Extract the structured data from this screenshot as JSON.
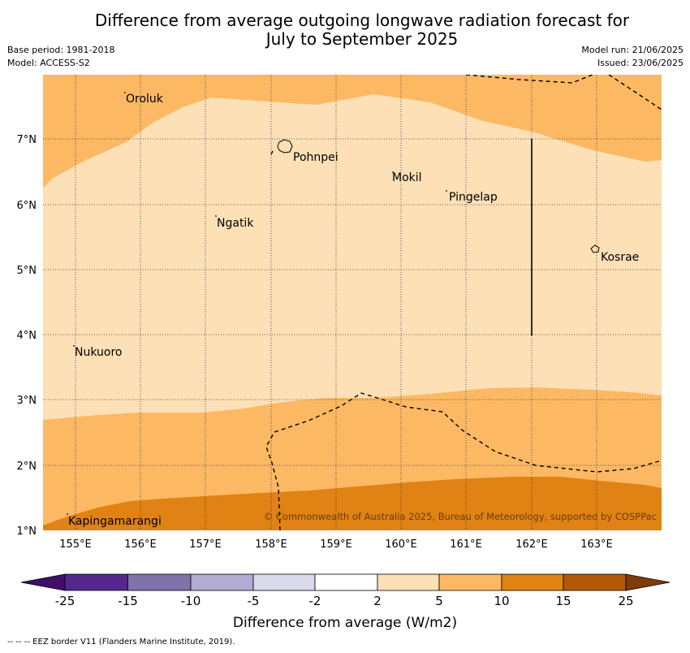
{
  "title_line1": "Difference from average outgoing longwave radiation forecast for",
  "title_line2": "July to September 2025",
  "base_period": "Base period: 1981-2018",
  "model": "Model: ACCESS-S2",
  "model_run": "Model run: 21/06/2025",
  "issued": "Issued: 23/06/2025",
  "copyright": "© Commonwealth of Australia 2025, Bureau of Meteorology, supported by COSPPac",
  "x_ticks": [
    "155°E",
    "156°E",
    "157°E",
    "158°E",
    "159°E",
    "160°E",
    "161°E",
    "162°E",
    "163°E"
  ],
  "y_ticks": [
    "7°N",
    "6°N",
    "5°N",
    "4°N",
    "3°N",
    "2°N",
    "1°N"
  ],
  "places": [
    {
      "name": "Oroluk"
    },
    {
      "name": "Pohnpei"
    },
    {
      "name": "Mokil"
    },
    {
      "name": "Pingelap"
    },
    {
      "name": "Ngatik"
    },
    {
      "name": "Kosrae"
    },
    {
      "name": "Nukuoro"
    },
    {
      "name": "Kapingamarangi"
    }
  ],
  "colorbar": {
    "ticks": [
      "-25",
      "-15",
      "-10",
      "-5",
      "-2",
      "2",
      "5",
      "10",
      "15",
      "25"
    ],
    "colors": [
      "#3f0f6b",
      "#54278f",
      "#8073ac",
      "#b2abd2",
      "#d8daeb",
      "#ffffff",
      "#fee0b6",
      "#fdb863",
      "#e08214",
      "#b35806",
      "#7f3b08"
    ],
    "label": "Difference from average (W/m2)"
  },
  "footer": "--  --  -- EEZ border V11 (Flanders Marine Institute, 2019)."
}
